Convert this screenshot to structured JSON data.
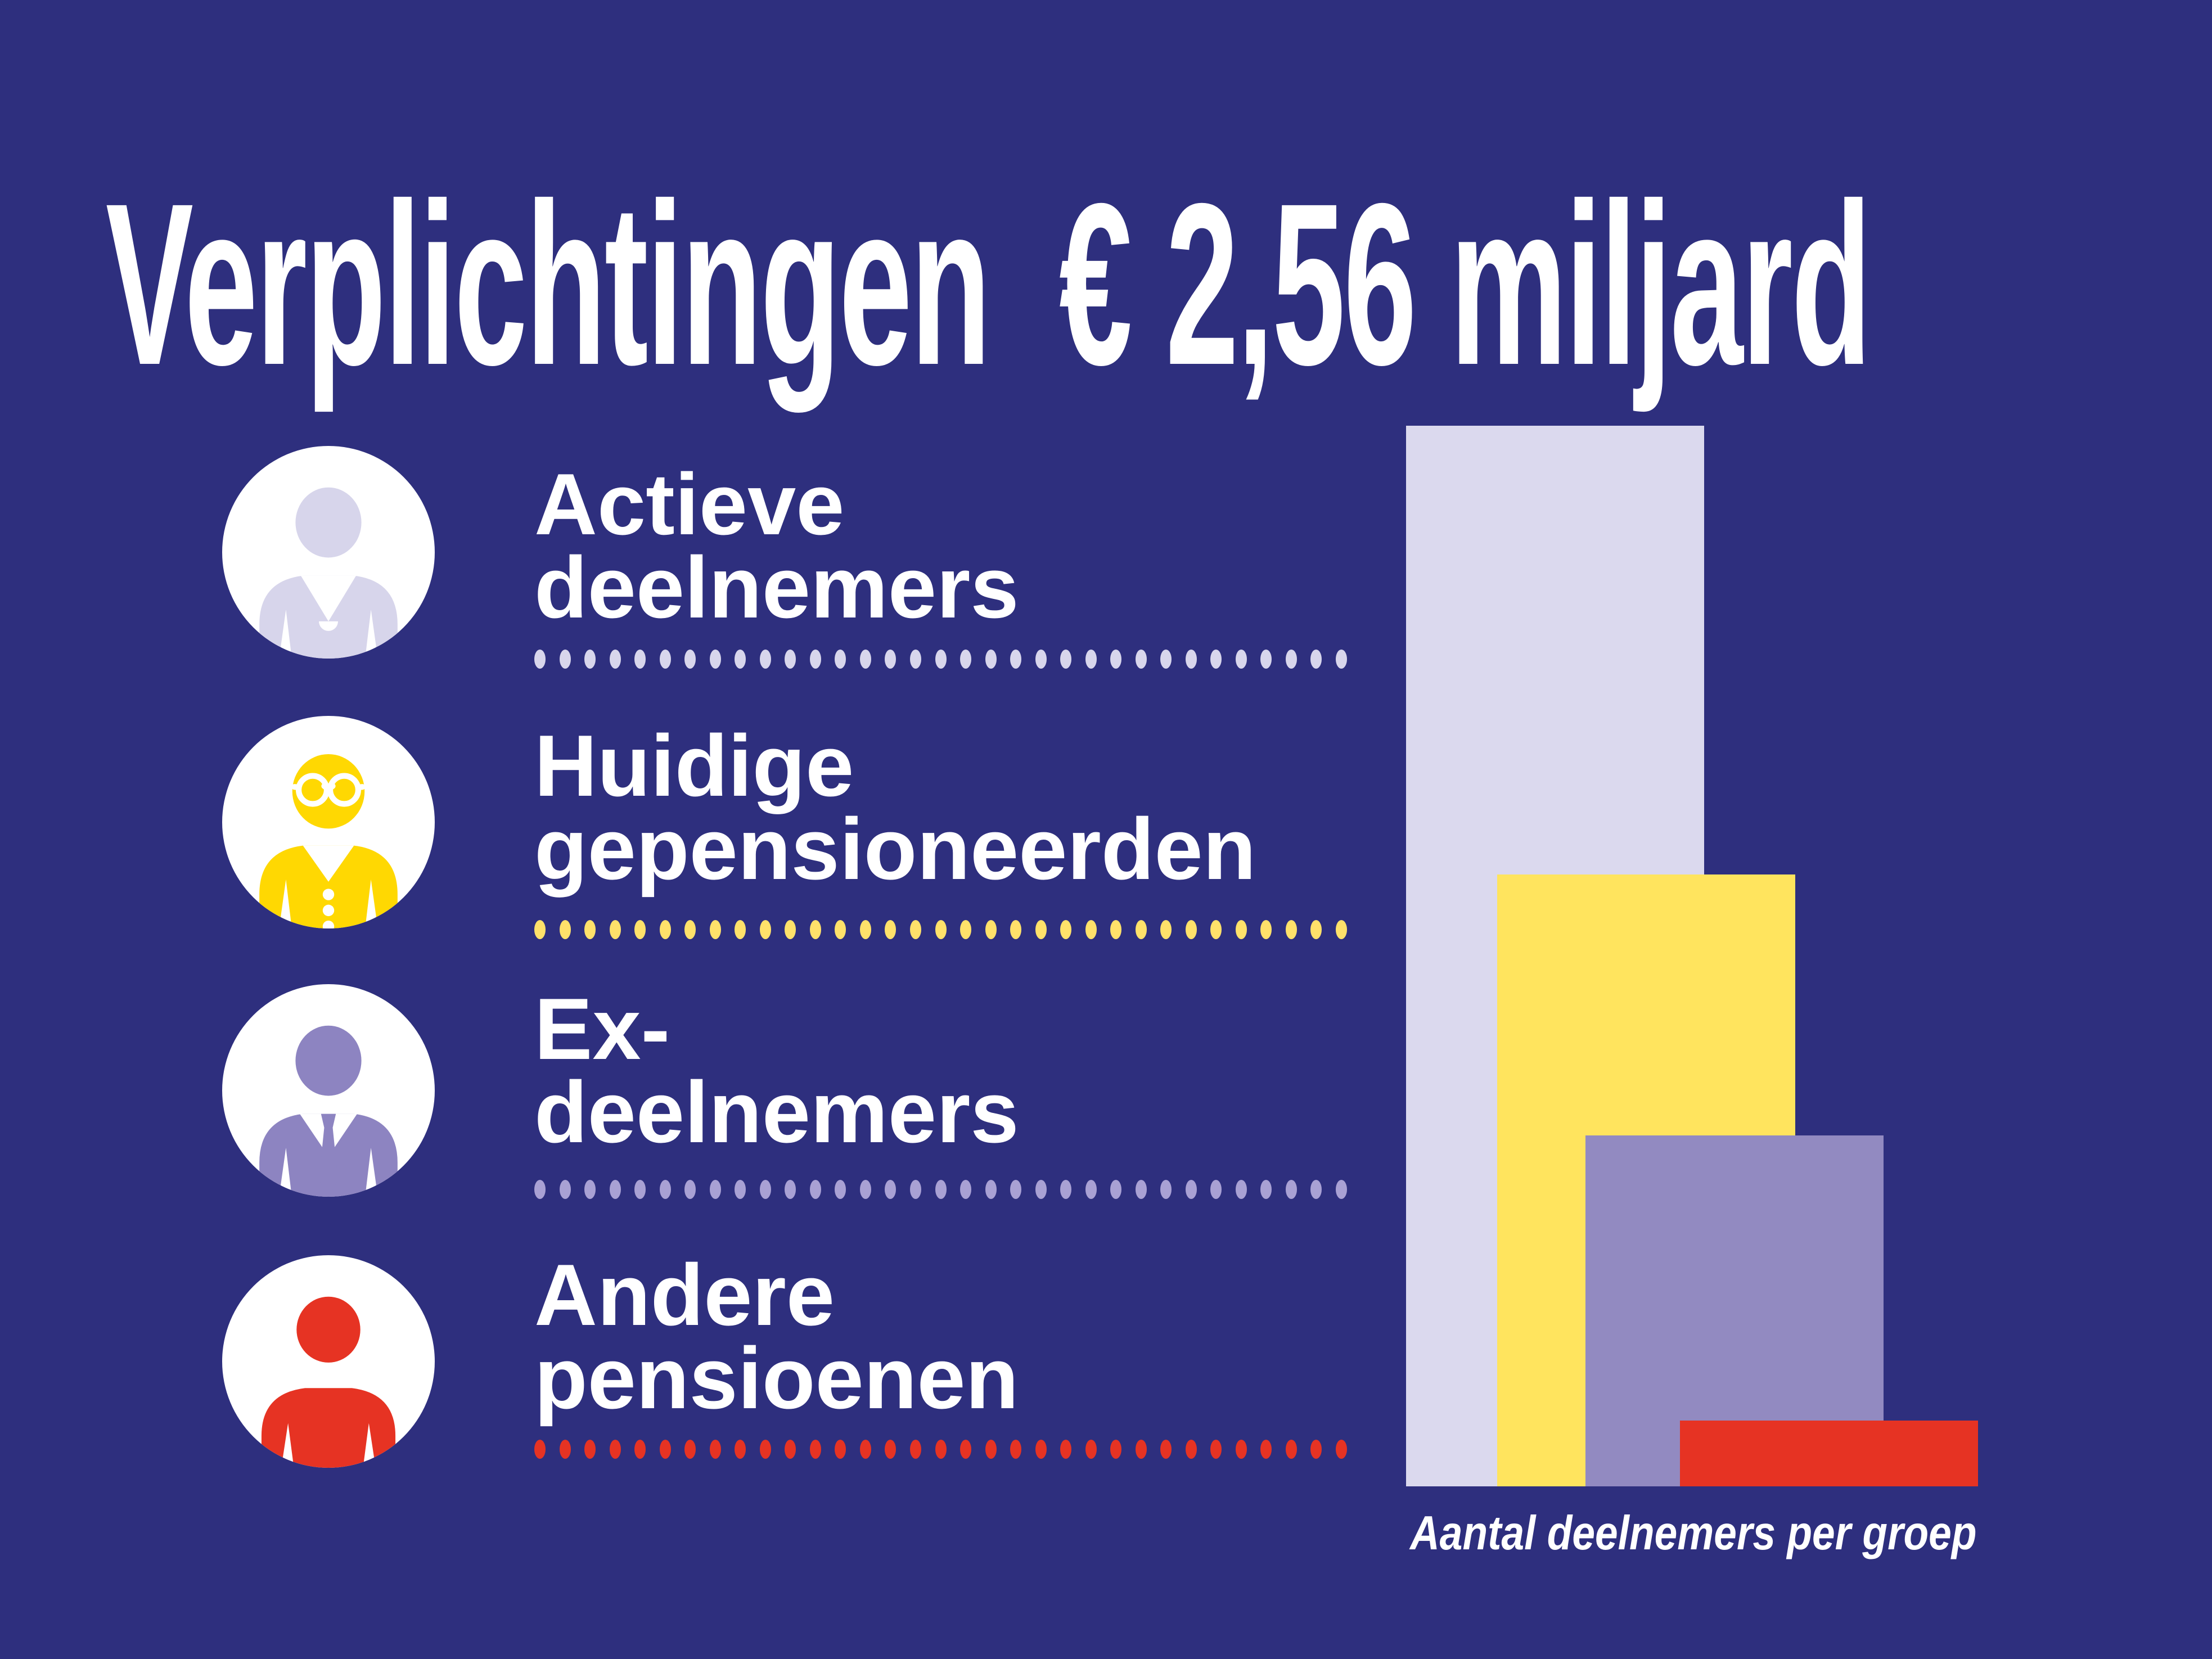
{
  "title": {
    "text": "Verplichtingen  € 2,56 miljard"
  },
  "colors": {
    "background": "#2e2f7e",
    "text": "#ffffff"
  },
  "items": [
    {
      "line1": "Actieve",
      "line2": "deelnemers",
      "icon": "active-member-icon",
      "icon_color": "#d7d5eb",
      "dot_color": "#d8d6ec"
    },
    {
      "line1": "Huidige",
      "line2": "gepensioneerden",
      "icon": "pensioner-icon",
      "icon_color": "#ffd802",
      "dot_color": "#ffe16a"
    },
    {
      "line1": "Ex-",
      "line2": "deelnemers",
      "icon": "ex-member-icon",
      "icon_color": "#8d84c1",
      "dot_color": "#a9a1d4"
    },
    {
      "line1": "Andere",
      "line2": "pensioenen",
      "icon": "other-pensions-icon",
      "icon_color": "#e63323",
      "dot_color": "#e63323"
    }
  ],
  "separator": {
    "dots_per_row": 33
  },
  "chart_data": {
    "type": "bar",
    "title": "Verplichtingen € 2,56 miljard",
    "caption": "Aantal deelnemers per groep",
    "categories": [
      "Actieve deelnemers",
      "Huidige gepensioneerden",
      "Ex-deelnemers",
      "Andere pensioenen"
    ],
    "values": [
      100,
      57.7,
      33.1,
      6.2
    ],
    "value_basis": "estimated percent of tallest bar; chart has no axes or numeric labels",
    "colors": [
      "#dbd9ee",
      "#ffe45e",
      "#928ac1",
      "#e63323"
    ],
    "orientation": "vertical",
    "layout": "overlapping staggered bars, bottom-aligned, no gridlines, no axis ticks",
    "legend_position": "left list with icons and dotted separators"
  }
}
